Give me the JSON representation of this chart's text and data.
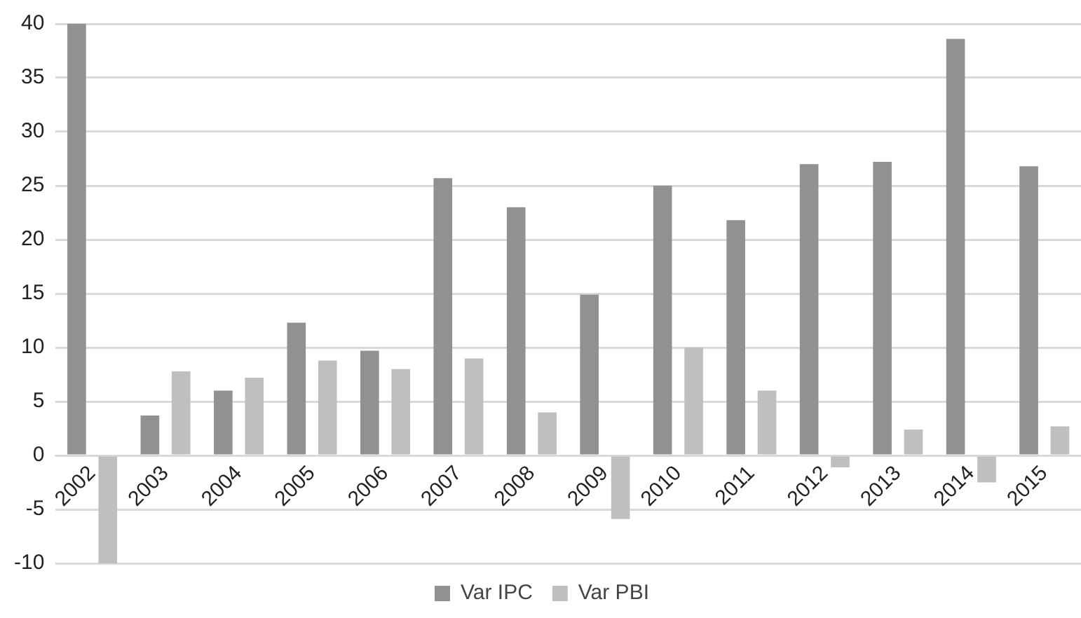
{
  "chart_data": {
    "type": "bar",
    "categories": [
      "2002",
      "2003",
      "2004",
      "2005",
      "2006",
      "2007",
      "2008",
      "2009",
      "2010",
      "2011",
      "2012",
      "2013",
      "2014",
      "2015"
    ],
    "series": [
      {
        "name": "Var IPC",
        "color": "#919191",
        "values": [
          40,
          3.7,
          6.0,
          12.3,
          9.7,
          25.7,
          23.0,
          14.9,
          25.0,
          21.8,
          27.0,
          27.2,
          38.6,
          26.8
        ]
      },
      {
        "name": "Var PBI",
        "color": "#bfbfbf",
        "values": [
          -10,
          7.8,
          7.2,
          8.8,
          8.0,
          9.0,
          4.0,
          -5.9,
          10.0,
          6.0,
          -1.1,
          2.4,
          -2.5,
          2.7
        ]
      }
    ],
    "ylim": [
      -10,
      40
    ],
    "yticks": [
      -10,
      -5,
      0,
      5,
      10,
      15,
      20,
      25,
      30,
      35,
      40
    ],
    "grid": "y",
    "legend": "bottom"
  }
}
